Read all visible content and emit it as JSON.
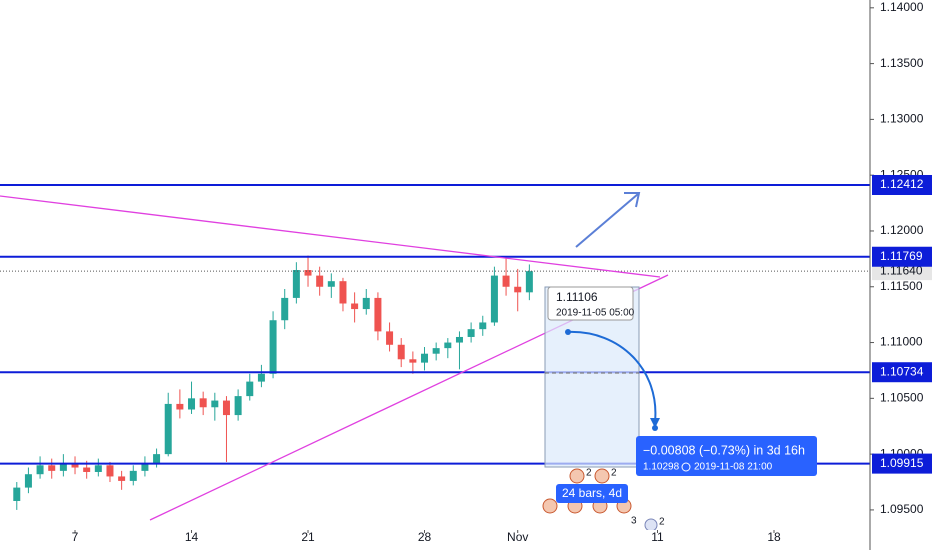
{
  "chart_data": {
    "type": "candlestick",
    "x": [
      -2.5,
      -2,
      -1.5,
      -1,
      -0.5,
      0,
      0.5,
      1,
      1.5,
      2,
      2.5,
      3,
      3.5,
      4,
      4.5,
      5,
      5.5,
      6,
      6.5,
      7,
      7.5,
      8,
      8.5,
      9,
      9.5,
      10,
      10.5,
      11,
      11.5,
      12,
      12.5,
      13,
      13.5,
      14,
      14.5,
      15,
      15.5,
      16,
      16.5,
      17,
      17.5,
      18,
      18.5,
      19,
      19.5
    ],
    "ohlc": [
      [
        1.0958,
        1.0975,
        1.095,
        1.097
      ],
      [
        1.097,
        1.0988,
        1.0965,
        1.0982
      ],
      [
        1.0982,
        1.0998,
        1.0978,
        1.099
      ],
      [
        1.099,
        1.0996,
        1.0978,
        1.0985
      ],
      [
        1.0985,
        1.1,
        1.098,
        1.0992
      ],
      [
        1.0992,
        1.0998,
        1.0982,
        1.0988
      ],
      [
        1.0988,
        1.0994,
        1.0978,
        1.0984
      ],
      [
        1.0984,
        1.0996,
        1.098,
        1.099
      ],
      [
        1.099,
        1.0993,
        1.0975,
        1.098
      ],
      [
        1.098,
        1.0985,
        1.0968,
        1.0976
      ],
      [
        1.0976,
        1.099,
        1.0972,
        1.0985
      ],
      [
        1.0985,
        1.0998,
        1.098,
        1.0992
      ],
      [
        1.0992,
        1.1005,
        1.0988,
        1.1
      ],
      [
        1.1,
        1.1055,
        1.0998,
        1.1045
      ],
      [
        1.1045,
        1.1058,
        1.1032,
        1.104
      ],
      [
        1.104,
        1.1065,
        1.1036,
        1.105
      ],
      [
        1.105,
        1.1056,
        1.1035,
        1.1042
      ],
      [
        1.1042,
        1.1055,
        1.103,
        1.1048
      ],
      [
        1.1048,
        1.1052,
        1.0993,
        1.1035
      ],
      [
        1.1035,
        1.1058,
        1.103,
        1.1052
      ],
      [
        1.1052,
        1.1072,
        1.1048,
        1.1065
      ],
      [
        1.1065,
        1.108,
        1.106,
        1.1072
      ],
      [
        1.1072,
        1.1128,
        1.1068,
        1.112
      ],
      [
        1.112,
        1.1148,
        1.1112,
        1.114
      ],
      [
        1.114,
        1.1172,
        1.1135,
        1.1165
      ],
      [
        1.1165,
        1.1178,
        1.115,
        1.116
      ],
      [
        1.116,
        1.1168,
        1.1142,
        1.115
      ],
      [
        1.115,
        1.1162,
        1.114,
        1.1155
      ],
      [
        1.1155,
        1.1158,
        1.1128,
        1.1135
      ],
      [
        1.1135,
        1.1145,
        1.1118,
        1.113
      ],
      [
        1.113,
        1.1148,
        1.1125,
        1.114
      ],
      [
        1.114,
        1.1145,
        1.1102,
        1.111
      ],
      [
        1.111,
        1.1118,
        1.1092,
        1.1098
      ],
      [
        1.1098,
        1.1104,
        1.1078,
        1.1085
      ],
      [
        1.1085,
        1.1092,
        1.1072,
        1.1082
      ],
      [
        1.1082,
        1.1096,
        1.1075,
        1.109
      ],
      [
        1.109,
        1.11,
        1.1084,
        1.1095
      ],
      [
        1.1095,
        1.1104,
        1.1086,
        1.11
      ],
      [
        1.11,
        1.111,
        1.1076,
        1.1105
      ],
      [
        1.1105,
        1.1118,
        1.11,
        1.1112
      ],
      [
        1.1112,
        1.1124,
        1.1106,
        1.1118
      ],
      [
        1.1118,
        1.1168,
        1.1115,
        1.116
      ],
      [
        1.116,
        1.1176,
        1.1142,
        1.115
      ],
      [
        1.115,
        1.1166,
        1.1128,
        1.1145
      ],
      [
        1.1145,
        1.117,
        1.1138,
        1.1164
      ]
    ],
    "up_color": "#26a69a",
    "down_color": "#ef5350",
    "xlim": [
      -3.22,
      34.12
    ],
    "xticks": [
      {
        "value": 0,
        "label": "7"
      },
      {
        "value": 5,
        "label": "14"
      },
      {
        "value": 10,
        "label": "21"
      },
      {
        "value": 15,
        "label": "28"
      },
      {
        "value": 19,
        "label": "Nov"
      },
      {
        "value": 25,
        "label": "11"
      },
      {
        "value": 30,
        "label": "18"
      }
    ],
    "ylim": [
      1.0932,
      1.1407
    ],
    "yticks": [
      {
        "value": 1.14,
        "label": "1.14000"
      },
      {
        "value": 1.135,
        "label": "1.13500"
      },
      {
        "value": 1.13,
        "label": "1.13000"
      },
      {
        "value": 1.125,
        "label": "1.12500"
      },
      {
        "value": 1.12,
        "label": "1.12000"
      },
      {
        "value": 1.115,
        "label": "1.11500"
      },
      {
        "value": 1.11,
        "label": "1.11000"
      },
      {
        "value": 1.105,
        "label": "1.10500"
      },
      {
        "value": 1.1,
        "label": "1.10000"
      },
      {
        "value": 1.095,
        "label": "1.09500"
      }
    ],
    "levels": [
      1.12412,
      1.11769,
      1.10734,
      1.09915
    ],
    "level_color": "#0d1dd8",
    "last_price": {
      "value": 1.1164,
      "label": "1.11640"
    },
    "annotations": {
      "start_price": "1.11106",
      "start_time": "2019-11-05 05:00",
      "change": "−0.00808 (−0.73%) in 3d 16h",
      "end_price": "1.10298",
      "end_time": "2019-11-08  21:00",
      "bars": "24 bars, 4d",
      "events": [
        "2",
        "2",
        "3",
        "2"
      ]
    }
  }
}
